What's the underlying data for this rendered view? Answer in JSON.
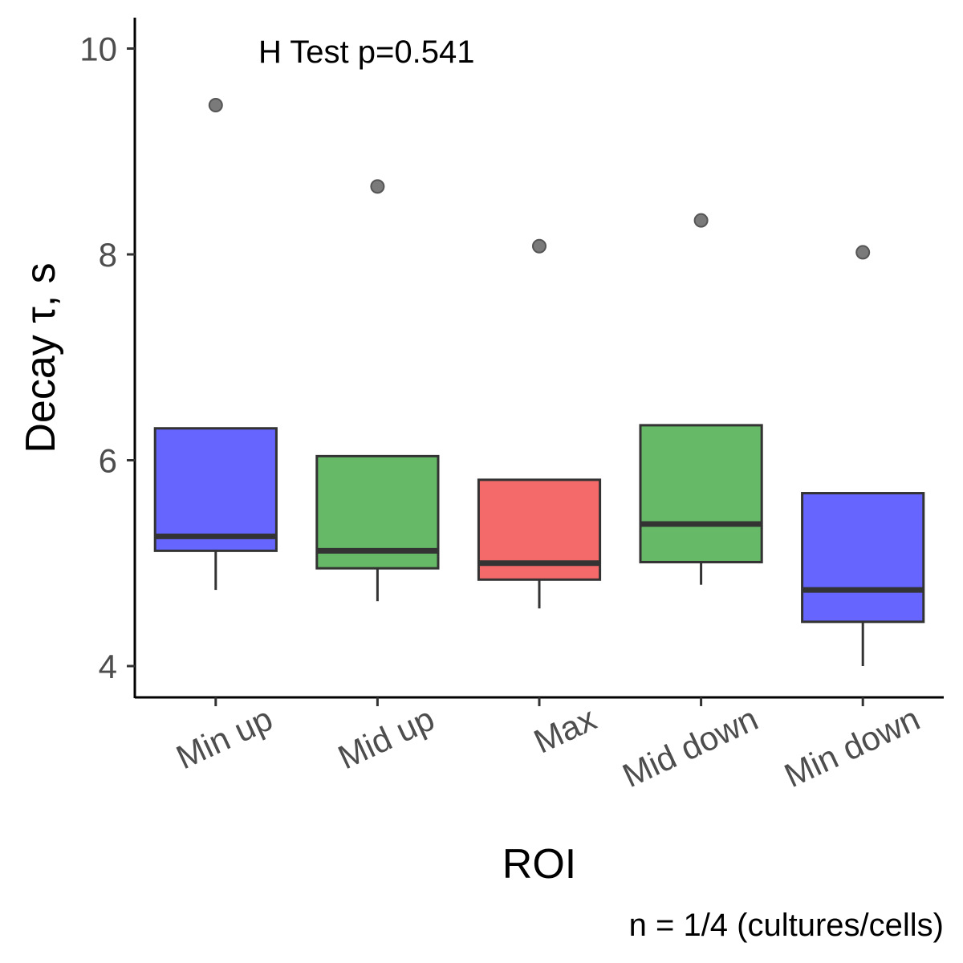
{
  "chart_data": {
    "type": "box",
    "title": "",
    "xlabel": "ROI",
    "ylabel": "Decay τ, s",
    "annotation": "H Test p=0.541",
    "caption": "n = 1/4 (cultures/cells)",
    "ylim": [
      3.7,
      10.3
    ],
    "yticks": [
      4,
      6,
      8,
      10
    ],
    "grid": false,
    "legend": "none",
    "categories": [
      "Min up",
      "Mid up",
      "Max",
      "Mid down",
      "Min down"
    ],
    "boxes": [
      {
        "category": "Min up",
        "whisker_low": 4.74,
        "q1": 5.12,
        "median": 5.26,
        "q3": 6.31,
        "whisker_high": 6.31,
        "outliers": [
          9.45
        ],
        "color": "#6666ff"
      },
      {
        "category": "Mid up",
        "whisker_low": 4.63,
        "q1": 4.95,
        "median": 5.12,
        "q3": 6.04,
        "whisker_high": 6.04,
        "outliers": [
          8.66
        ],
        "color": "#66b966"
      },
      {
        "category": "Max",
        "whisker_low": 4.56,
        "q1": 4.84,
        "median": 5.0,
        "q3": 5.81,
        "whisker_high": 5.81,
        "outliers": [
          8.08
        ],
        "color": "#f46a6a"
      },
      {
        "category": "Mid down",
        "whisker_low": 4.79,
        "q1": 5.01,
        "median": 5.38,
        "q3": 6.34,
        "whisker_high": 6.34,
        "outliers": [
          8.33
        ],
        "color": "#66b966"
      },
      {
        "category": "Min down",
        "whisker_low": 4.0,
        "q1": 4.43,
        "median": 4.74,
        "q3": 5.68,
        "whisker_high": 5.68,
        "outliers": [
          8.02
        ],
        "color": "#6666ff"
      }
    ]
  }
}
